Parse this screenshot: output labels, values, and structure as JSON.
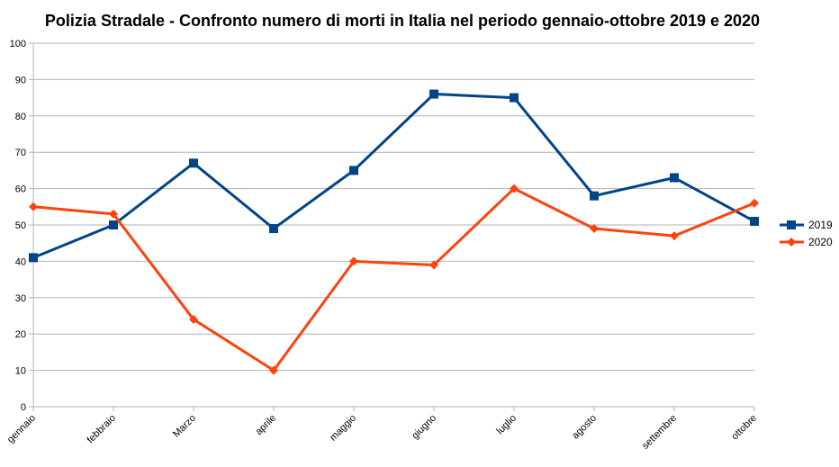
{
  "chart_data": {
    "type": "line",
    "title": "Polizia Stradale - Confronto numero di morti in Italia nel periodo gennaio-ottobre 2019 e 2020",
    "xlabel": "",
    "ylabel": "",
    "categories": [
      "gennaio",
      "febbraio",
      "Marzo",
      "aprile",
      "maggio",
      "giugno",
      "luglio",
      "agosto",
      "settembre",
      "ottobre"
    ],
    "ylim": [
      0,
      100
    ],
    "yticks": [
      0,
      10,
      20,
      30,
      40,
      50,
      60,
      70,
      80,
      90,
      100
    ],
    "grid": true,
    "legend_position": "right",
    "series": [
      {
        "name": "2019",
        "color": "#004586",
        "marker": "square",
        "values": [
          41,
          50,
          67,
          49,
          65,
          86,
          85,
          58,
          63,
          51
        ]
      },
      {
        "name": "2020",
        "color": "#ff420e",
        "marker": "diamond",
        "values": [
          55,
          53,
          24,
          10,
          40,
          39,
          60,
          49,
          47,
          56
        ]
      }
    ]
  }
}
